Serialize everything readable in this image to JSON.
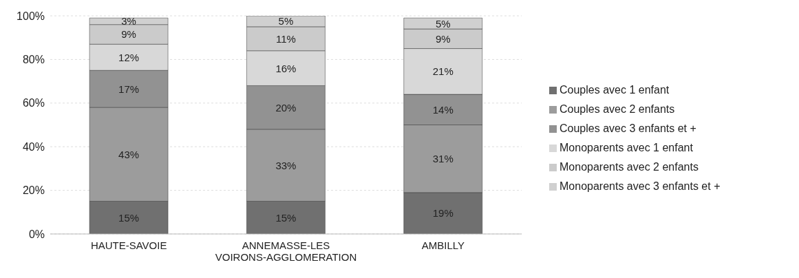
{
  "chart_data": {
    "type": "bar",
    "stacked": true,
    "categories": [
      "HAUTE-SAVOIE",
      "ANNEMASSE-LES VOIRONS-AGGLOMERATION",
      "AMBILLY"
    ],
    "series": [
      {
        "name": "Couples avec 1 enfant",
        "color": "#707070",
        "values": [
          15,
          15,
          19
        ],
        "value_labels": [
          "15%",
          "15%",
          "19%"
        ]
      },
      {
        "name": "Couples avec 2 enfants",
        "color": "#9c9c9c",
        "values": [
          43,
          33,
          31
        ],
        "value_labels": [
          "43%",
          "33%",
          "31%"
        ]
      },
      {
        "name": "Couples avec 3 enfants et +",
        "color": "#929292",
        "values": [
          17,
          20,
          14
        ],
        "value_labels": [
          "17%",
          "20%",
          "14%"
        ]
      },
      {
        "name": "Monoparents avec 1 enfant",
        "color": "#d8d8d8",
        "values": [
          12,
          16,
          21
        ],
        "value_labels": [
          "12%",
          "16%",
          "21%"
        ]
      },
      {
        "name": "Monoparents avec 2 enfants",
        "color": "#cbcbcb",
        "values": [
          9,
          11,
          9
        ],
        "value_labels": [
          "9%",
          "11%",
          "9%"
        ]
      },
      {
        "name": "Monoparents avec 3 enfants et +",
        "color": "#d0d0d0",
        "values": [
          3,
          5,
          5
        ],
        "value_labels": [
          "3%",
          "5%",
          "5%"
        ]
      }
    ],
    "ylim": [
      0,
      100
    ],
    "yticks": [
      {
        "value": 0,
        "label": "0%"
      },
      {
        "value": 20,
        "label": "20%"
      },
      {
        "value": 40,
        "label": "40%"
      },
      {
        "value": 60,
        "label": "60%"
      },
      {
        "value": 80,
        "label": "80%"
      },
      {
        "value": 100,
        "label": "100%"
      }
    ],
    "grid": "y",
    "legend": "right"
  }
}
